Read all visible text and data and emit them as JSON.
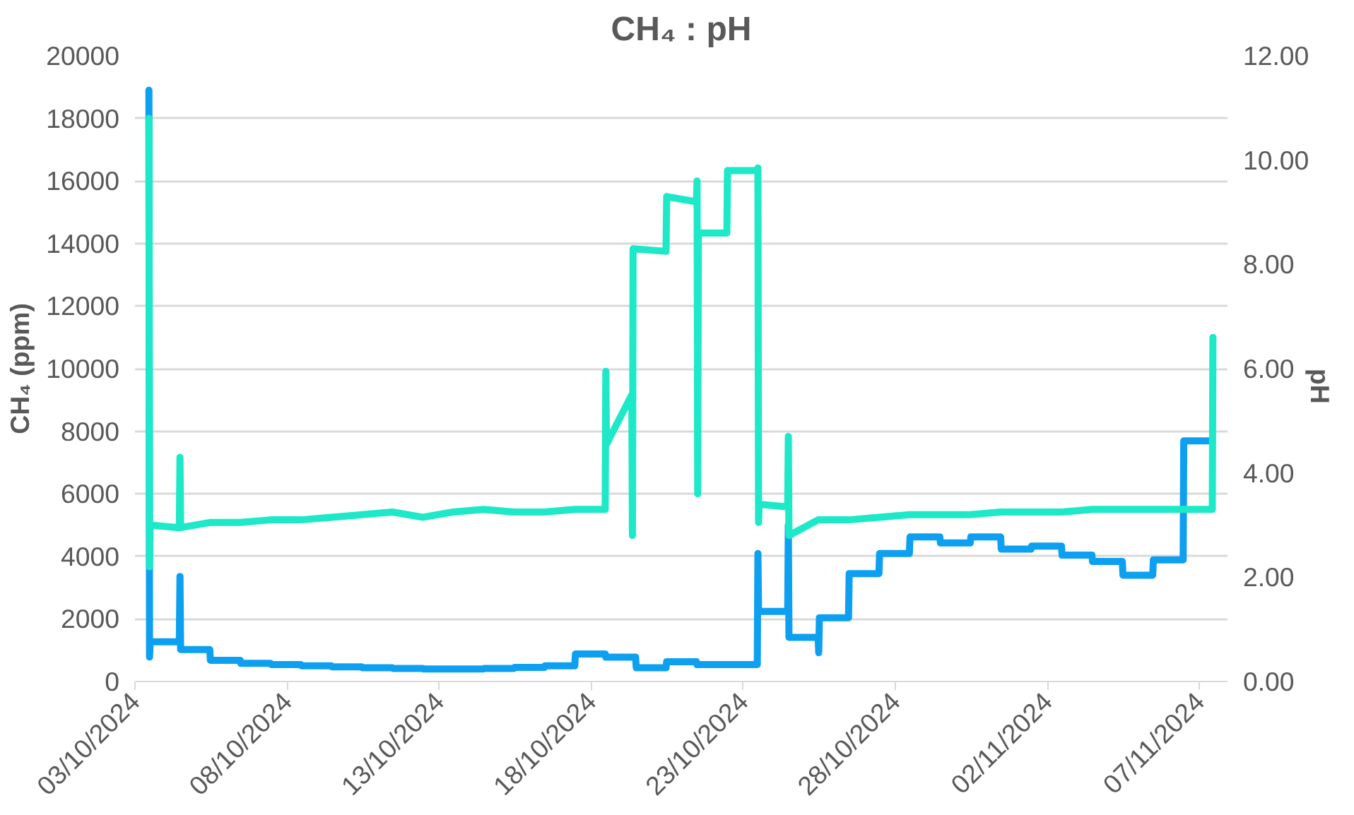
{
  "chart_data": {
    "type": "line",
    "title": "CH₄ : pH",
    "ylabel": "CH₄ (ppm)",
    "y2label": "pH",
    "xlim": [
      "2024-10-03",
      "2024-11-07T22:00"
    ],
    "xticks": [
      {
        "value": "2024-10-03",
        "label": "03/10/2024"
      },
      {
        "value": "2024-10-08",
        "label": "08/10/2024"
      },
      {
        "value": "2024-10-13",
        "label": "13/10/2024"
      },
      {
        "value": "2024-10-18",
        "label": "18/10/2024"
      },
      {
        "value": "2024-10-23",
        "label": "23/10/2024"
      },
      {
        "value": "2024-10-28",
        "label": "28/10/2024"
      },
      {
        "value": "2024-11-02",
        "label": "02/11/2024"
      },
      {
        "value": "2024-11-07",
        "label": "07/11/2024"
      }
    ],
    "ylim": [
      0,
      20000
    ],
    "yticks": [
      0,
      2000,
      4000,
      6000,
      8000,
      10000,
      12000,
      14000,
      16000,
      18000,
      20000
    ],
    "y2lim": [
      0,
      12
    ],
    "y2ticks": [
      {
        "value": 0,
        "label": "0.00"
      },
      {
        "value": 2,
        "label": "2.00"
      },
      {
        "value": 4,
        "label": "4.00"
      },
      {
        "value": 6,
        "label": "6.00"
      },
      {
        "value": 8,
        "label": "8.00"
      },
      {
        "value": 10,
        "label": "10.00"
      },
      {
        "value": 12,
        "label": "12.00"
      }
    ],
    "grid": "y",
    "line_style": "solid",
    "marker": "none",
    "series": [
      {
        "color": "#0ea0f0",
        "x": [
          "2024-10-03T11:00",
          "2024-10-03T11:30",
          "2024-10-03T12:00",
          "2024-10-04T11:00",
          "2024-10-04T11:30",
          "2024-10-04T12:00",
          "2024-10-05T11:00",
          "2024-10-05T11:30",
          "2024-10-06T11:00",
          "2024-10-06T11:30",
          "2024-10-07T11:00",
          "2024-10-07T11:30",
          "2024-10-08T11:00",
          "2024-10-08T11:30",
          "2024-10-09T11:00",
          "2024-10-09T11:30",
          "2024-10-10T11:00",
          "2024-10-10T11:30",
          "2024-10-11T11:00",
          "2024-10-11T11:30",
          "2024-10-12T11:00",
          "2024-10-12T11:30",
          "2024-10-13T11:00",
          "2024-10-14T11:00",
          "2024-10-14T11:30",
          "2024-10-15T11:00",
          "2024-10-15T11:30",
          "2024-10-16T11:00",
          "2024-10-16T11:30",
          "2024-10-17T11:00",
          "2024-10-17T11:30",
          "2024-10-18T11:00",
          "2024-10-18T11:30",
          "2024-10-19T11:00",
          "2024-10-19T11:30",
          "2024-10-20T11:00",
          "2024-10-20T11:30",
          "2024-10-21T11:00",
          "2024-10-21T11:30",
          "2024-10-23T11:00",
          "2024-10-23T11:30",
          "2024-10-23T12:00",
          "2024-10-24T11:00",
          "2024-10-24T11:30",
          "2024-10-24T12:00",
          "2024-10-25T11:00",
          "2024-10-25T11:30",
          "2024-10-25T12:00",
          "2024-10-26T11:00",
          "2024-10-26T11:30",
          "2024-10-27T11:00",
          "2024-10-27T11:30",
          "2024-10-28T11:00",
          "2024-10-28T11:30",
          "2024-10-29T11:00",
          "2024-10-29T11:30",
          "2024-10-30T11:00",
          "2024-10-30T11:30",
          "2024-10-31T11:00",
          "2024-10-31T11:30",
          "2024-11-01T11:00",
          "2024-11-01T11:30",
          "2024-11-02T11:00",
          "2024-11-02T11:30",
          "2024-11-03T11:00",
          "2024-11-03T11:30",
          "2024-11-04T11:00",
          "2024-11-04T11:30",
          "2024-11-05T11:00",
          "2024-11-05T11:30",
          "2024-11-06T11:00",
          "2024-11-06T11:30",
          "2024-11-07T10:00"
        ],
        "values": [
          18900,
          780,
          1270,
          1270,
          3360,
          1020,
          1020,
          680,
          680,
          580,
          580,
          540,
          540,
          500,
          500,
          470,
          470,
          440,
          440,
          420,
          420,
          400,
          400,
          400,
          420,
          420,
          450,
          450,
          500,
          500,
          880,
          880,
          780,
          780,
          440,
          440,
          630,
          630,
          540,
          540,
          4090,
          2240,
          2240,
          5000,
          1410,
          1410,
          920,
          2040,
          2040,
          3450,
          3450,
          4090,
          4090,
          4620,
          4620,
          4430,
          4430,
          4620,
          4620,
          4230,
          4230,
          4330,
          4330,
          4040,
          4040,
          3840,
          3840,
          3400,
          3400,
          3890,
          3890,
          7690,
          7690
        ]
      },
      {
        "color": "#1de8c8",
        "axis": "y2",
        "x": [
          "2024-10-03T11:00",
          "2024-10-03T11:30",
          "2024-10-03T12:00",
          "2024-10-04T11:00",
          "2024-10-04T11:30",
          "2024-10-04T12:00",
          "2024-10-05T11:00",
          "2024-10-06T11:00",
          "2024-10-07T11:00",
          "2024-10-08T11:00",
          "2024-10-09T11:00",
          "2024-10-10T11:00",
          "2024-10-11T11:00",
          "2024-10-12T11:00",
          "2024-10-13T11:00",
          "2024-10-14T11:00",
          "2024-10-15T11:00",
          "2024-10-16T11:00",
          "2024-10-17T11:00",
          "2024-10-18T11:00",
          "2024-10-18T11:30",
          "2024-10-18T12:00",
          "2024-10-19T08:00",
          "2024-10-19T08:30",
          "2024-10-19T09:00",
          "2024-10-20T11:00",
          "2024-10-20T11:30",
          "2024-10-21T11:00",
          "2024-10-21T11:30",
          "2024-10-21T12:00",
          "2024-10-21T12:30",
          "2024-10-22T11:00",
          "2024-10-22T11:30",
          "2024-10-23T11:00",
          "2024-10-23T11:30",
          "2024-10-23T12:00",
          "2024-10-23T12:30",
          "2024-10-24T11:00",
          "2024-10-24T11:30",
          "2024-10-24T12:00",
          "2024-10-25T11:00",
          "2024-10-26T11:00",
          "2024-10-27T11:00",
          "2024-10-28T11:00",
          "2024-10-29T11:00",
          "2024-10-30T11:00",
          "2024-10-31T11:00",
          "2024-11-01T11:00",
          "2024-11-02T11:00",
          "2024-11-03T11:00",
          "2024-11-04T11:00",
          "2024-11-05T11:00",
          "2024-11-06T11:00",
          "2024-11-07T10:00",
          "2024-11-07T10:30"
        ],
        "values": [
          10.8,
          2.2,
          3.0,
          2.95,
          4.3,
          2.95,
          3.05,
          3.05,
          3.1,
          3.1,
          3.15,
          3.2,
          3.25,
          3.15,
          3.25,
          3.3,
          3.25,
          3.25,
          3.3,
          3.3,
          5.95,
          4.55,
          5.5,
          2.8,
          8.3,
          8.25,
          9.3,
          9.2,
          9.6,
          3.6,
          8.6,
          8.6,
          9.8,
          9.8,
          9.85,
          3.05,
          3.4,
          3.35,
          4.7,
          2.8,
          3.1,
          3.1,
          3.15,
          3.2,
          3.2,
          3.2,
          3.25,
          3.25,
          3.25,
          3.3,
          3.3,
          3.3,
          3.3,
          3.3,
          6.6
        ]
      }
    ]
  }
}
